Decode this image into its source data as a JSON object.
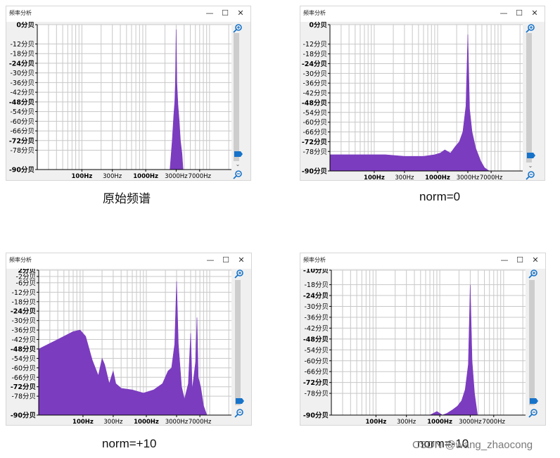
{
  "colors": {
    "fill": "#7b3cbf",
    "grid": "#c8c8c8",
    "axis": "#000000",
    "panel_bg": "#f0f0f0",
    "thumb": "#cdcdcd",
    "handle": "#1673c9"
  },
  "window_controls": {
    "minimize": "—",
    "maximize": "☐",
    "close": "✕"
  },
  "scroll": {
    "up": "⌃",
    "down": "⌄"
  },
  "x_ticks": [
    "100Hz",
    "300Hz",
    "1000Hz",
    "3000Hz",
    "7000Hz"
  ],
  "x_tick_bold": [
    true,
    false,
    true,
    false,
    false
  ],
  "panels": [
    {
      "title": "频率分析",
      "caption": "原始频谱",
      "y_ticks": [
        "0分贝",
        "-12分贝",
        "-18分贝",
        "-24分贝",
        "-30分贝",
        "-36分贝",
        "-42分贝",
        "-48分贝",
        "-54分贝",
        "-60分贝",
        "-66分贝",
        "-72分贝",
        "-78分贝",
        "-90分贝"
      ],
      "y_values": [
        0,
        -12,
        -18,
        -24,
        -30,
        -36,
        -42,
        -48,
        -54,
        -60,
        -66,
        -72,
        -78,
        -90
      ],
      "y_bold": [
        true,
        false,
        false,
        true,
        false,
        false,
        false,
        true,
        false,
        false,
        false,
        true,
        false,
        true
      ],
      "ylim": [
        -90,
        0
      ],
      "spectrum": [
        [
          2400,
          -90
        ],
        [
          2600,
          -72
        ],
        [
          2750,
          -56
        ],
        [
          2850,
          -48
        ],
        [
          2920,
          -36
        ],
        [
          3000,
          -3
        ],
        [
          3080,
          -36
        ],
        [
          3200,
          -50
        ],
        [
          3350,
          -60
        ],
        [
          3500,
          -72
        ],
        [
          3700,
          -80
        ],
        [
          3850,
          -90
        ]
      ]
    },
    {
      "title": "频率分析",
      "caption": "norm=0",
      "y_ticks": [
        "0分贝",
        "-12分贝",
        "-18分贝",
        "-24分贝",
        "-30分贝",
        "-36分贝",
        "-42分贝",
        "-48分贝",
        "-54分贝",
        "-60分贝",
        "-66分贝",
        "-72分贝",
        "-78分贝",
        "-90分贝"
      ],
      "y_values": [
        0,
        -12,
        -18,
        -24,
        -30,
        -36,
        -42,
        -48,
        -54,
        -60,
        -66,
        -72,
        -78,
        -90
      ],
      "y_bold": [
        true,
        false,
        false,
        true,
        false,
        false,
        false,
        true,
        false,
        false,
        false,
        true,
        false,
        true
      ],
      "ylim": [
        -90,
        0
      ],
      "spectrum": [
        [
          20,
          -80
        ],
        [
          60,
          -80
        ],
        [
          150,
          -80
        ],
        [
          300,
          -81
        ],
        [
          600,
          -81
        ],
        [
          900,
          -80
        ],
        [
          1100,
          -79
        ],
        [
          1300,
          -77
        ],
        [
          1600,
          -79
        ],
        [
          1900,
          -75
        ],
        [
          2200,
          -72
        ],
        [
          2500,
          -66
        ],
        [
          2800,
          -50
        ],
        [
          3000,
          -6
        ],
        [
          3200,
          -52
        ],
        [
          3500,
          -66
        ],
        [
          4000,
          -76
        ],
        [
          4800,
          -84
        ],
        [
          5500,
          -88
        ],
        [
          6500,
          -90
        ]
      ]
    },
    {
      "title": "频率分析",
      "caption": "norm=+10",
      "y_ticks": [
        "2分贝",
        "-2分贝",
        "-6分贝",
        "-12分贝",
        "-18分贝",
        "-24分贝",
        "-30分贝",
        "-36分贝",
        "-42分贝",
        "-48分贝",
        "-54分贝",
        "-60分贝",
        "-66分贝",
        "-72分贝",
        "-78分贝",
        "-90分贝"
      ],
      "y_values": [
        2,
        -2,
        -6,
        -12,
        -18,
        -24,
        -30,
        -36,
        -42,
        -48,
        -54,
        -60,
        -66,
        -72,
        -78,
        -90
      ],
      "y_bold": [
        true,
        false,
        false,
        false,
        false,
        true,
        false,
        false,
        false,
        true,
        false,
        false,
        false,
        true,
        false,
        true
      ],
      "ylim": [
        -90,
        2
      ],
      "spectrum": [
        [
          20,
          -48
        ],
        [
          40,
          -42
        ],
        [
          70,
          -37
        ],
        [
          90,
          -36
        ],
        [
          110,
          -40
        ],
        [
          140,
          -55
        ],
        [
          175,
          -65
        ],
        [
          200,
          -54
        ],
        [
          220,
          -58
        ],
        [
          260,
          -70
        ],
        [
          300,
          -62
        ],
        [
          330,
          -70
        ],
        [
          400,
          -73
        ],
        [
          600,
          -74
        ],
        [
          900,
          -76
        ],
        [
          1300,
          -74
        ],
        [
          1800,
          -70
        ],
        [
          2200,
          -62
        ],
        [
          2500,
          -60
        ],
        [
          2800,
          -45
        ],
        [
          3000,
          -5
        ],
        [
          3200,
          -45
        ],
        [
          3600,
          -72
        ],
        [
          4000,
          -80
        ],
        [
          4600,
          -70
        ],
        [
          5000,
          -38
        ],
        [
          5300,
          -74
        ],
        [
          6000,
          -56
        ],
        [
          6300,
          -28
        ],
        [
          6600,
          -66
        ],
        [
          7200,
          -72
        ],
        [
          8000,
          -84
        ],
        [
          9000,
          -90
        ]
      ]
    },
    {
      "title": "频率分析",
      "caption": "norm=-10",
      "y_ticks": [
        "-10分贝",
        "-18分贝",
        "-24分贝",
        "-30分贝",
        "-36分贝",
        "-42分贝",
        "-48分贝",
        "-54分贝",
        "-60分贝",
        "-66分贝",
        "-72分贝",
        "-78分贝",
        "-90分贝"
      ],
      "y_values": [
        -10,
        -18,
        -24,
        -30,
        -36,
        -42,
        -48,
        -54,
        -60,
        -66,
        -72,
        -78,
        -90
      ],
      "y_bold": [
        true,
        false,
        true,
        false,
        false,
        false,
        true,
        false,
        false,
        false,
        true,
        false,
        true
      ],
      "ylim": [
        -90,
        -10
      ],
      "spectrum": [
        [
          700,
          -90
        ],
        [
          900,
          -88
        ],
        [
          1100,
          -90
        ],
        [
          1300,
          -89
        ],
        [
          1600,
          -87
        ],
        [
          1900,
          -85
        ],
        [
          2200,
          -82
        ],
        [
          2500,
          -76
        ],
        [
          2800,
          -62
        ],
        [
          3000,
          -18
        ],
        [
          3200,
          -60
        ],
        [
          3500,
          -78
        ],
        [
          3900,
          -90
        ]
      ]
    }
  ],
  "watermark": "CSDN @wang_zhaocong"
}
